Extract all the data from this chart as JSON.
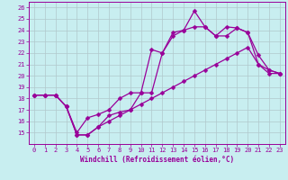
{
  "xlabel": "Windchill (Refroidissement éolien,°C)",
  "bg_color": "#c8eef0",
  "line_color": "#990099",
  "grid_color": "#b0c8cc",
  "line1_x": [
    0,
    1,
    2,
    3,
    4,
    5,
    6,
    7,
    8,
    9,
    10,
    11,
    12,
    13,
    14,
    15,
    16,
    17,
    18,
    19,
    20,
    21,
    22,
    23
  ],
  "line1_y": [
    18.3,
    18.3,
    18.3,
    17.3,
    15.0,
    16.3,
    16.6,
    17.0,
    18.0,
    18.5,
    18.5,
    18.5,
    22.0,
    23.5,
    24.0,
    25.7,
    24.3,
    23.5,
    24.3,
    24.2,
    23.8,
    21.0,
    20.2,
    20.2
  ],
  "line2_x": [
    0,
    1,
    2,
    3,
    4,
    5,
    6,
    7,
    8,
    9,
    10,
    11,
    12,
    13,
    14,
    15,
    16,
    17,
    18,
    19,
    20,
    21,
    22,
    23
  ],
  "line2_y": [
    18.3,
    18.3,
    18.3,
    17.3,
    14.8,
    14.8,
    15.5,
    16.5,
    16.8,
    17.0,
    18.5,
    22.3,
    22.0,
    23.8,
    24.0,
    24.3,
    24.3,
    23.5,
    23.5,
    24.2,
    23.8,
    21.8,
    20.5,
    20.2
  ],
  "line3_x": [
    0,
    1,
    2,
    3,
    4,
    5,
    6,
    7,
    8,
    9,
    10,
    11,
    12,
    13,
    14,
    15,
    16,
    17,
    18,
    19,
    20,
    21,
    22,
    23
  ],
  "line3_y": [
    18.3,
    18.3,
    18.3,
    17.3,
    14.8,
    14.8,
    15.5,
    16.0,
    16.5,
    17.0,
    17.5,
    18.0,
    18.5,
    19.0,
    19.5,
    20.0,
    20.5,
    21.0,
    21.5,
    22.0,
    22.5,
    21.0,
    20.5,
    20.2
  ],
  "xlim": [
    -0.5,
    23.5
  ],
  "ylim": [
    14.0,
    26.5
  ],
  "xticks": [
    0,
    1,
    2,
    3,
    4,
    5,
    6,
    7,
    8,
    9,
    10,
    11,
    12,
    13,
    14,
    15,
    16,
    17,
    18,
    19,
    20,
    21,
    22,
    23
  ],
  "yticks": [
    15,
    16,
    17,
    18,
    19,
    20,
    21,
    22,
    23,
    24,
    25,
    26
  ]
}
